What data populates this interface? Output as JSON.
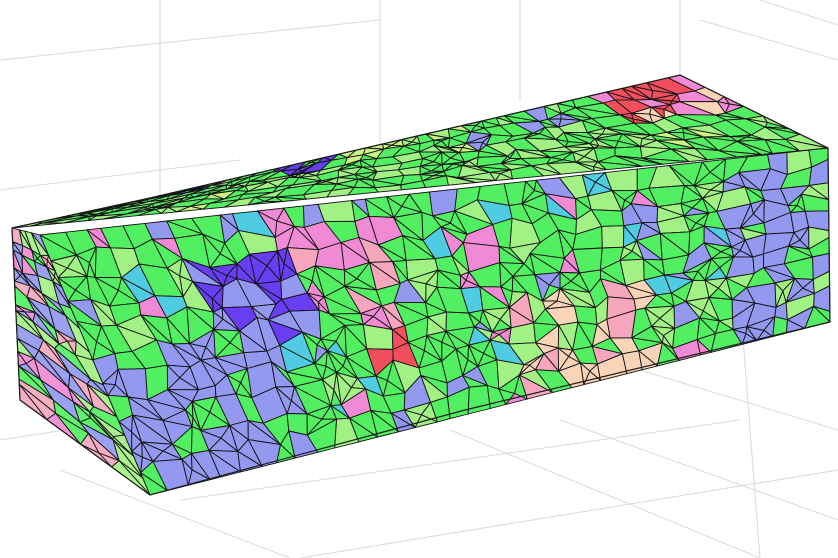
{
  "scene": {
    "palette": {
      "background": "#ffffff",
      "grid": "#d9d9d9",
      "grain_boundary": "#111111",
      "green": "#44ee55",
      "light_green": "#9af07a",
      "lime": "#c8f37a",
      "blue": "#8a90ee",
      "violet": "#5a2ef0",
      "magenta": "#f080d0",
      "pink": "#f5a0b8",
      "red": "#f04050",
      "peach": "#f8d0b0",
      "cyan": "#40c8e0"
    },
    "faces": [
      "top-face",
      "front-face",
      "side-face"
    ]
  }
}
